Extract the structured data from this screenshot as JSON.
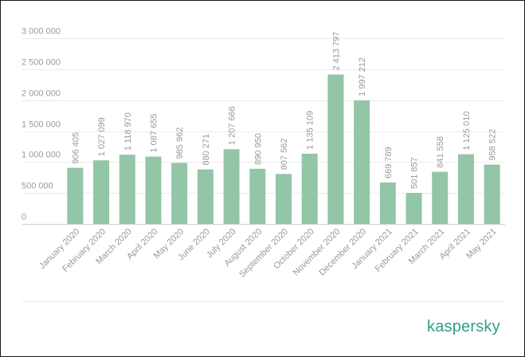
{
  "chart_data": {
    "type": "bar",
    "categories": [
      "January 2020",
      "February 2020",
      "March 2020",
      "April 2020",
      "May 2020",
      "June 2020",
      "July 2020",
      "August 2020",
      "September 2020",
      "October 2020",
      "November 2020",
      "December 2020",
      "January 2021",
      "February 2021",
      "March 2021",
      "April 2021",
      "May 2021"
    ],
    "values": [
      906405,
      1027099,
      1118970,
      1087655,
      985962,
      880271,
      1207666,
      890950,
      807562,
      1135109,
      2413797,
      1997212,
      669789,
      501857,
      841558,
      1125010,
      958522
    ],
    "value_labels": [
      "906 405",
      "1 027 099",
      "1 118 970",
      "1 087 655",
      "985 962",
      "880 271",
      "1 207 666",
      "890 950",
      "807 562",
      "1 135 109",
      "2 413 797",
      "1 997 212",
      "669 789",
      "501 857",
      "841 558",
      "1 125 010",
      "958 522"
    ],
    "y_ticks": [
      0,
      500000,
      1000000,
      1500000,
      2000000,
      2500000,
      3000000
    ],
    "y_tick_labels": [
      "0",
      "500 000",
      "1 000 000",
      "1 500 000",
      "2 000 000",
      "2 500 000",
      "3 000 000"
    ],
    "ylim": [
      0,
      3000000
    ],
    "grid": true,
    "bar_color": "#93c5a7",
    "title": "",
    "xlabel": "",
    "ylabel": ""
  },
  "brand": {
    "logo_text": "kaspersky",
    "color": "#2e9e88"
  }
}
